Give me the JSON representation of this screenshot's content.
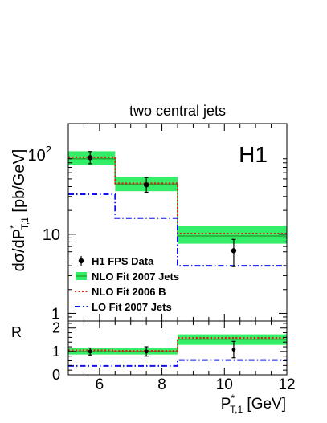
{
  "chart_data": {
    "type": "bar",
    "title": "two central jets",
    "experiment_label": "H1",
    "xlabel": {
      "main": "P",
      "sup": "*",
      "sub": "T,1",
      "unit": " [GeV]"
    },
    "ylabel": {
      "pre": "dσ/dP",
      "sup": "*",
      "sub": "T,1",
      "unit": " [pb/GeV]"
    },
    "ratio_ylabel": "R",
    "xlim": [
      5,
      12
    ],
    "ylim": [
      0.8,
      250
    ],
    "yscale": "log",
    "ratio_ylim": [
      0,
      2.3
    ],
    "xticks": [
      {
        "value": 6,
        "label": "6"
      },
      {
        "value": 8,
        "label": "8"
      },
      {
        "value": 10,
        "label": "10"
      },
      {
        "value": 12,
        "label": "12"
      }
    ],
    "yticks": [
      {
        "value": 1,
        "label": "1"
      },
      {
        "value": 10,
        "label": "10"
      },
      {
        "value": 100,
        "label": "10",
        "exp": "2"
      }
    ],
    "ratio_yticks": [
      {
        "value": 0,
        "label": "0"
      },
      {
        "value": 1,
        "label": "1"
      },
      {
        "value": 2,
        "label": "2"
      }
    ],
    "bins": [
      [
        5,
        6.5
      ],
      [
        6.5,
        8.5
      ],
      [
        8.5,
        12
      ]
    ],
    "series": [
      {
        "name": "H1 FPS Data",
        "style": "points",
        "color": "#000000",
        "x": [
          5.7,
          7.5,
          10.3
        ],
        "values": [
          93,
          42,
          6.2
        ],
        "err": [
          [
            15,
            18
          ],
          [
            8,
            10
          ],
          [
            2.3,
            2.4
          ]
        ],
        "ratio": [
          1.0,
          1.0,
          1.08
        ],
        "ratio_err": [
          [
            0.15,
            0.15
          ],
          [
            0.2,
            0.2
          ],
          [
            0.35,
            0.35
          ]
        ]
      },
      {
        "name": "NLO Fit 2007 Jets",
        "style": "band",
        "color": "#33ee66",
        "line_color": "#22aa33",
        "values": [
          90,
          43,
          9.5
        ],
        "band": [
          [
            75,
            112
          ],
          [
            35,
            53
          ],
          [
            7.6,
            12.8
          ]
        ],
        "ratio": [
          1.0,
          1.0,
          1.5
        ],
        "ratio_band": [
          [
            0.87,
            1.15
          ],
          [
            0.87,
            1.15
          ],
          [
            1.28,
            1.73
          ]
        ]
      },
      {
        "name": "NLO Fit 2006 B",
        "style": "dotted",
        "color": "#ee1111",
        "values": [
          94,
          44,
          10.2
        ],
        "ratio": [
          1.05,
          1.03,
          1.58
        ]
      },
      {
        "name": "LO Fit 2007 Jets",
        "style": "dashdot",
        "color": "#1111ee",
        "values": [
          32,
          16,
          4.0
        ],
        "ratio": [
          0.38,
          0.38,
          0.63
        ]
      }
    ],
    "legend_position": "lower-left",
    "grid": false
  }
}
